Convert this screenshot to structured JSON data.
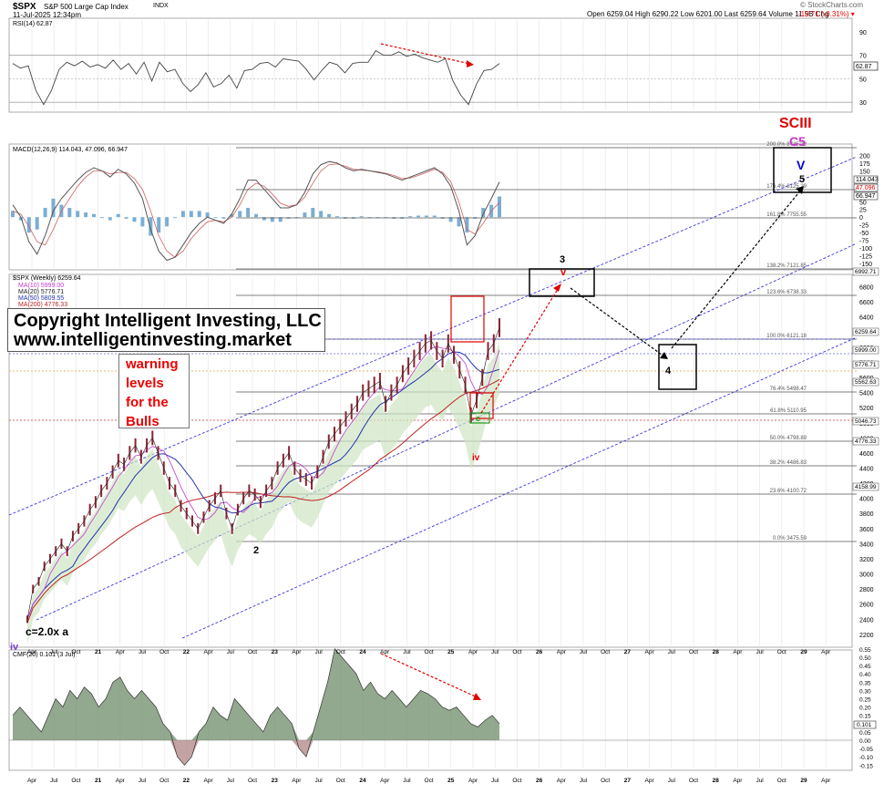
{
  "header": {
    "symbol": "$SPX",
    "name": "S&P 500 Large Cap Index",
    "exchange": "INDX",
    "date": "11-Jul-2025 12:34pm",
    "quote": "Open 6259.04  High 6290.22  Low 6201.00  Last 6259.64  Volume 11.5B  Chg",
    "change": "-19.71 (-0.31%) ▾",
    "watermark": "© StockCharts.com"
  },
  "overlays": {
    "copyright_line1": "Copyright Intelligent Investing, LLC",
    "copyright_line2": "www.intelligentinvesting.market",
    "warning_lines": [
      "warning",
      "levels",
      "for the",
      "Bulls"
    ],
    "sc_label": "SCIII",
    "c5_label": "C5",
    "v_label": "V",
    "five_label": "5",
    "three_label": "3",
    "v_small_label": "v",
    "four_label": "4",
    "two_label": "2",
    "iv_label": "iv",
    "c_label": "c",
    "c_eq_label": "c=2.0x a",
    "iv_purple_label": "iv"
  },
  "colors": {
    "red": "#e00000",
    "magenta": "#cc33cc",
    "blue": "#0000cc",
    "green": "#228822",
    "orange": "#e08a00",
    "price": "#8a2432",
    "cloud": "#cfe5c3",
    "hist": "#7aaed4",
    "cmf": "#6f8c6a",
    "cmf_neg": "#b48c8c"
  },
  "chart_data": [
    {
      "type": "line",
      "panel": "RSI",
      "title": "RSI(14) 62.87",
      "ylim": [
        20,
        100
      ],
      "y_ticks": [
        90,
        70,
        50,
        30
      ],
      "last": "62.87",
      "series": [
        {
          "name": "RSI(14)",
          "values": [
            63,
            59,
            61,
            40,
            28,
            40,
            58,
            64,
            61,
            65,
            60,
            62,
            59,
            66,
            58,
            63,
            54,
            64,
            48,
            64,
            56,
            58,
            46,
            39,
            45,
            55,
            43,
            46,
            53,
            42,
            57,
            58,
            63,
            64,
            60,
            67,
            66,
            65,
            58,
            49,
            57,
            64,
            62,
            55,
            63,
            64,
            64,
            74,
            70,
            70,
            73,
            69,
            71,
            68,
            66,
            64,
            67,
            48,
            36,
            28,
            45,
            57,
            58,
            63
          ]
        }
      ]
    },
    {
      "type": "line",
      "panel": "MACD",
      "title": "MACD(12,26,9) 114.043, 47.096, 66.947",
      "ylim": [
        -150,
        225
      ],
      "y_ticks": [
        200,
        175,
        150,
        125,
        100,
        75,
        50,
        25,
        0,
        -25,
        -50,
        -75,
        -100,
        -125,
        -150
      ],
      "last": [
        "114.043",
        "47.096",
        "66.947"
      ],
      "series": [
        {
          "name": "MACD",
          "values": [
            40,
            0,
            -80,
            -120,
            -60,
            20,
            60,
            90,
            120,
            145,
            160,
            150,
            130,
            155,
            140,
            110,
            60,
            -40,
            -110,
            -140,
            -130,
            -90,
            -50,
            -20,
            0,
            -10,
            -20,
            10,
            60,
            120,
            120,
            90,
            60,
            30,
            30,
            40,
            80,
            140,
            170,
            180,
            175,
            160,
            150,
            155,
            150,
            145,
            140,
            130,
            120,
            130,
            140,
            150,
            160,
            140,
            100,
            20,
            -90,
            -60,
            10,
            60,
            114
          ]
        },
        {
          "name": "Signal",
          "values": [
            20,
            10,
            -30,
            -80,
            -90,
            -40,
            20,
            60,
            100,
            130,
            150,
            150,
            140,
            145,
            145,
            125,
            90,
            20,
            -60,
            -110,
            -130,
            -110,
            -70,
            -40,
            -15,
            -10,
            -15,
            0,
            40,
            90,
            110,
            100,
            75,
            45,
            35,
            40,
            65,
            110,
            150,
            170,
            172,
            165,
            155,
            152,
            150,
            147,
            142,
            135,
            125,
            127,
            135,
            145,
            155,
            145,
            115,
            50,
            -40,
            -55,
            -20,
            20,
            47
          ]
        },
        {
          "name": "Histogram",
          "values": [
            20,
            -10,
            -50,
            -40,
            30,
            60,
            40,
            30,
            20,
            15,
            10,
            0,
            -10,
            10,
            -5,
            -15,
            -30,
            -60,
            -50,
            -30,
            0,
            20,
            20,
            20,
            15,
            0,
            -5,
            10,
            20,
            30,
            10,
            -10,
            -15,
            -15,
            -5,
            0,
            15,
            30,
            20,
            10,
            3,
            -5,
            -5,
            3,
            0,
            -2,
            -2,
            -5,
            -5,
            3,
            5,
            5,
            5,
            -5,
            -15,
            -30,
            -50,
            -5,
            30,
            40,
            67
          ]
        }
      ]
    },
    {
      "type": "line",
      "panel": "Price",
      "title": "$SPX (Weekly) 6259.64",
      "ylim": [
        2150,
        7100
      ],
      "y_ticks": [
        6800,
        6600,
        6400,
        6200,
        6000,
        5800,
        5600,
        5400,
        5200,
        5000,
        4800,
        4600,
        4400,
        4200,
        4000,
        3800,
        3600,
        3400,
        3200,
        3000,
        2800,
        2600,
        2400,
        2200
      ],
      "legend": [
        "MA(10) 5999.00",
        "MA(20) 5776.71",
        "MA(50) 5809.55",
        "MA(200) 4776.33"
      ],
      "fib_levels": [
        {
          "label": "200.0% 8745.22"
        },
        {
          "label": "176.4% 8125.29"
        },
        {
          "label": "161.8% 7755.55"
        },
        {
          "label": "138.2% 7121.85"
        },
        {
          "label": "123.6% 6738.33"
        },
        {
          "label": "100.0% 6121.18"
        },
        {
          "label": "76.4% 5498.47"
        },
        {
          "label": "61.8% 5110.95"
        },
        {
          "label": "50.0% 4798.89"
        },
        {
          "label": "38.2% 4486.83"
        },
        {
          "label": "23.6% 4100.72"
        },
        {
          "label": "0.0% 3475.59"
        }
      ],
      "right_labels": [
        "6992.71",
        "6259.64",
        "5999.00",
        "5776.71",
        "5562.63",
        "5046.73",
        "4776.33",
        "4158.99"
      ],
      "x_ticks": [
        "Apr",
        "Jul",
        "Oct",
        "21",
        "Apr",
        "Jul",
        "Oct",
        "22",
        "Apr",
        "Jul",
        "Oct",
        "23",
        "Apr",
        "Jul",
        "Oct",
        "24",
        "Apr",
        "Jul",
        "Oct",
        "25",
        "Apr",
        "Jul",
        "Oct",
        "26",
        "Apr",
        "Jul",
        "Oct",
        "27",
        "Apr",
        "Jul",
        "Oct",
        "28",
        "Apr",
        "Jul",
        "Oct",
        "29",
        "Apr"
      ],
      "series": [
        {
          "name": "$SPX",
          "values": [
            2400,
            2800,
            2900,
            3100,
            3200,
            3300,
            3400,
            3300,
            3500,
            3600,
            3700,
            3850,
            3950,
            4100,
            4200,
            4350,
            4500,
            4450,
            4600,
            4700,
            4550,
            4700,
            4800,
            4600,
            4400,
            4200,
            4100,
            3900,
            3800,
            3700,
            3600,
            3750,
            3900,
            4000,
            4100,
            3800,
            3600,
            3850,
            4000,
            4100,
            4050,
            3950,
            4100,
            4200,
            4400,
            4500,
            4600,
            4400,
            4300,
            4250,
            4200,
            4350,
            4550,
            4750,
            4850,
            4950,
            5050,
            5150,
            5250,
            5400,
            5450,
            5500,
            5550,
            5250,
            5400,
            5500,
            5650,
            5750,
            5850,
            5950,
            6050,
            6090,
            5950,
            5850,
            6050,
            5900,
            5700,
            5500,
            5100,
            5300,
            5600,
            5950,
            6050,
            6259
          ]
        }
      ]
    },
    {
      "type": "area",
      "panel": "CMF",
      "title": "CMF(20) 0.101 (3 Jul)",
      "ylim": [
        -0.2,
        0.6
      ],
      "y_ticks": [
        0.55,
        0.5,
        0.45,
        0.4,
        0.35,
        0.3,
        0.25,
        0.2,
        0.15,
        0.1,
        0.05,
        0.0,
        -0.05,
        -0.1,
        -0.15
      ],
      "last": "0.101",
      "series": [
        {
          "name": "CMF(20)",
          "values": [
            0.15,
            0.2,
            0.15,
            0.1,
            0.05,
            0.15,
            0.25,
            0.2,
            0.3,
            0.25,
            0.32,
            0.28,
            0.2,
            0.25,
            0.35,
            0.38,
            0.3,
            0.25,
            0.3,
            0.25,
            0.2,
            0.1,
            0.05,
            -0.1,
            -0.15,
            -0.1,
            0.05,
            0.1,
            0.2,
            0.15,
            0.12,
            0.25,
            0.2,
            0.15,
            0.1,
            0.05,
            0.15,
            0.2,
            0.15,
            0.1,
            -0.05,
            -0.1,
            0.05,
            0.2,
            0.35,
            0.55,
            0.5,
            0.45,
            0.4,
            0.3,
            0.35,
            0.28,
            0.25,
            0.3,
            0.25,
            0.2,
            0.25,
            0.3,
            0.28,
            0.25,
            0.2,
            0.18,
            0.2,
            0.15,
            0.1,
            0.08,
            0.12,
            0.15,
            0.1
          ]
        }
      ]
    }
  ]
}
